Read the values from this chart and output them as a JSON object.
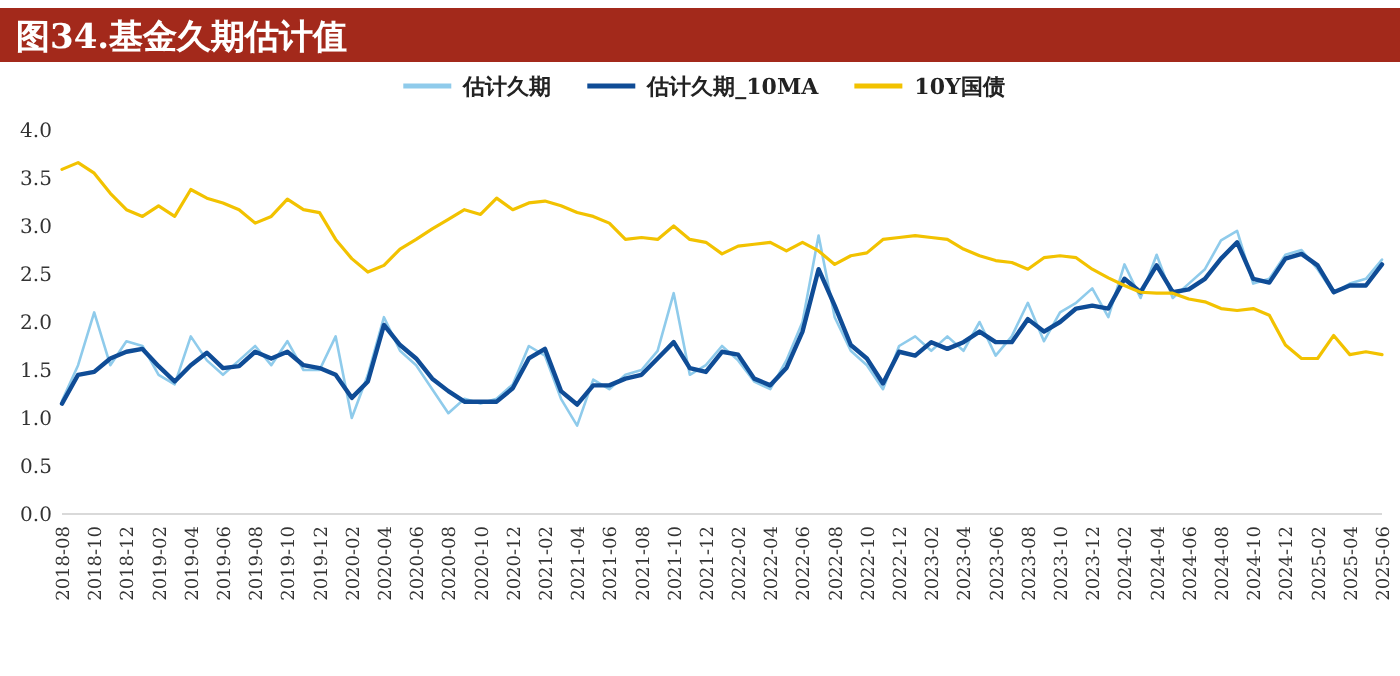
{
  "chart_data": {
    "type": "line",
    "title": "图34.基金久期估计值",
    "x": [
      "2018-08",
      "2018-09",
      "2018-10",
      "2018-11",
      "2018-12",
      "2019-01",
      "2019-02",
      "2019-03",
      "2019-04",
      "2019-05",
      "2019-06",
      "2019-07",
      "2019-08",
      "2019-09",
      "2019-10",
      "2019-11",
      "2019-12",
      "2020-01",
      "2020-02",
      "2020-03",
      "2020-04",
      "2020-05",
      "2020-06",
      "2020-07",
      "2020-08",
      "2020-09",
      "2020-10",
      "2020-11",
      "2020-12",
      "2021-01",
      "2021-02",
      "2021-03",
      "2021-04",
      "2021-05",
      "2021-06",
      "2021-07",
      "2021-08",
      "2021-09",
      "2021-10",
      "2021-11",
      "2021-12",
      "2022-01",
      "2022-02",
      "2022-03",
      "2022-04",
      "2022-05",
      "2022-06",
      "2022-07",
      "2022-08",
      "2022-09",
      "2022-10",
      "2022-11",
      "2022-12",
      "2023-01",
      "2023-02",
      "2023-03",
      "2023-04",
      "2023-05",
      "2023-06",
      "2023-07",
      "2023-08",
      "2023-09",
      "2023-10",
      "2023-11",
      "2023-12",
      "2024-01",
      "2024-02",
      "2024-03",
      "2024-04",
      "2024-05",
      "2024-06",
      "2024-07",
      "2024-08",
      "2024-09",
      "2024-10",
      "2024-11",
      "2024-12",
      "2025-01",
      "2025-02",
      "2025-03",
      "2025-04",
      "2025-05",
      "2025-06"
    ],
    "series": [
      {
        "name": "估计久期",
        "color": "#8fcbeb",
        "values": [
          1.18,
          1.55,
          2.1,
          1.55,
          1.8,
          1.75,
          1.45,
          1.35,
          1.85,
          1.6,
          1.45,
          1.6,
          1.75,
          1.55,
          1.8,
          1.5,
          1.5,
          1.85,
          1.0,
          1.45,
          2.05,
          1.7,
          1.55,
          1.3,
          1.05,
          1.2,
          1.15,
          1.2,
          1.35,
          1.75,
          1.65,
          1.2,
          0.92,
          1.4,
          1.3,
          1.45,
          1.5,
          1.7,
          2.3,
          1.45,
          1.55,
          1.75,
          1.6,
          1.38,
          1.3,
          1.6,
          2.0,
          2.9,
          2.05,
          1.7,
          1.55,
          1.3,
          1.75,
          1.85,
          1.7,
          1.85,
          1.7,
          2.0,
          1.65,
          1.85,
          2.2,
          1.8,
          2.1,
          2.2,
          2.35,
          2.05,
          2.6,
          2.25,
          2.7,
          2.25,
          2.4,
          2.55,
          2.85,
          2.95,
          2.4,
          2.45,
          2.7,
          2.75,
          2.55,
          2.3,
          2.4,
          2.45,
          2.65
        ]
      },
      {
        "name": "估计久期_10MA",
        "color": "#0f4c96",
        "values": [
          1.15,
          1.45,
          1.48,
          1.62,
          1.69,
          1.72,
          1.54,
          1.38,
          1.55,
          1.68,
          1.52,
          1.54,
          1.69,
          1.62,
          1.69,
          1.55,
          1.52,
          1.45,
          1.21,
          1.38,
          1.97,
          1.76,
          1.62,
          1.41,
          1.28,
          1.17,
          1.17,
          1.17,
          1.31,
          1.62,
          1.72,
          1.28,
          1.14,
          1.34,
          1.34,
          1.41,
          1.45,
          1.62,
          1.79,
          1.52,
          1.48,
          1.69,
          1.66,
          1.41,
          1.34,
          1.52,
          1.9,
          2.55,
          2.17,
          1.76,
          1.62,
          1.36,
          1.69,
          1.65,
          1.79,
          1.72,
          1.79,
          1.9,
          1.79,
          1.79,
          2.03,
          1.9,
          2.0,
          2.14,
          2.17,
          2.14,
          2.45,
          2.31,
          2.59,
          2.31,
          2.34,
          2.45,
          2.66,
          2.83,
          2.45,
          2.41,
          2.66,
          2.71,
          2.59,
          2.31,
          2.38,
          2.38,
          2.6
        ]
      },
      {
        "name": "10Y国债",
        "color": "#f2c200",
        "values": [
          3.59,
          3.66,
          3.55,
          3.34,
          3.17,
          3.1,
          3.21,
          3.1,
          3.38,
          3.29,
          3.24,
          3.17,
          3.03,
          3.1,
          3.28,
          3.17,
          3.14,
          2.86,
          2.66,
          2.52,
          2.59,
          2.76,
          2.86,
          2.97,
          3.07,
          3.17,
          3.12,
          3.29,
          3.17,
          3.24,
          3.26,
          3.21,
          3.14,
          3.1,
          3.03,
          2.86,
          2.88,
          2.86,
          3.0,
          2.86,
          2.83,
          2.71,
          2.79,
          2.81,
          2.83,
          2.74,
          2.83,
          2.74,
          2.6,
          2.69,
          2.72,
          2.86,
          2.88,
          2.9,
          2.88,
          2.86,
          2.76,
          2.69,
          2.64,
          2.62,
          2.55,
          2.67,
          2.69,
          2.67,
          2.55,
          2.46,
          2.38,
          2.31,
          2.3,
          2.3,
          2.24,
          2.21,
          2.14,
          2.12,
          2.14,
          2.07,
          1.76,
          1.62,
          1.62,
          1.86,
          1.66,
          1.69,
          1.66
        ]
      }
    ],
    "xlim": [
      "2018-08",
      "2025-06"
    ],
    "xticks": [
      "2018-08",
      "2018-10",
      "2018-12",
      "2019-02",
      "2019-04",
      "2019-06",
      "2019-08",
      "2019-10",
      "2019-12",
      "2020-02",
      "2020-04",
      "2020-06",
      "2020-08",
      "2020-10",
      "2020-12",
      "2021-02",
      "2021-04",
      "2021-06",
      "2021-08",
      "2021-10",
      "2021-12",
      "2022-02",
      "2022-04",
      "2022-06",
      "2022-08",
      "2022-10",
      "2022-12",
      "2023-02",
      "2023-04",
      "2023-06",
      "2023-08",
      "2023-10",
      "2023-12",
      "2024-02",
      "2024-04",
      "2024-06",
      "2024-08",
      "2024-10",
      "2024-12",
      "2025-02",
      "2025-04",
      "2025-06"
    ],
    "ylim": [
      0,
      4
    ],
    "yticks": [
      {
        "value": 0,
        "label": "0.0"
      },
      {
        "value": 0.5,
        "label": "0.5"
      },
      {
        "value": 1,
        "label": "1.0"
      },
      {
        "value": 1.5,
        "label": "1.5"
      },
      {
        "value": 2,
        "label": "2.0"
      },
      {
        "value": 2.5,
        "label": "2.5"
      },
      {
        "value": 3,
        "label": "3.0"
      },
      {
        "value": 3.5,
        "label": "3.5"
      },
      {
        "value": 4,
        "label": "4.0"
      }
    ],
    "legend": "top",
    "grid": false
  }
}
